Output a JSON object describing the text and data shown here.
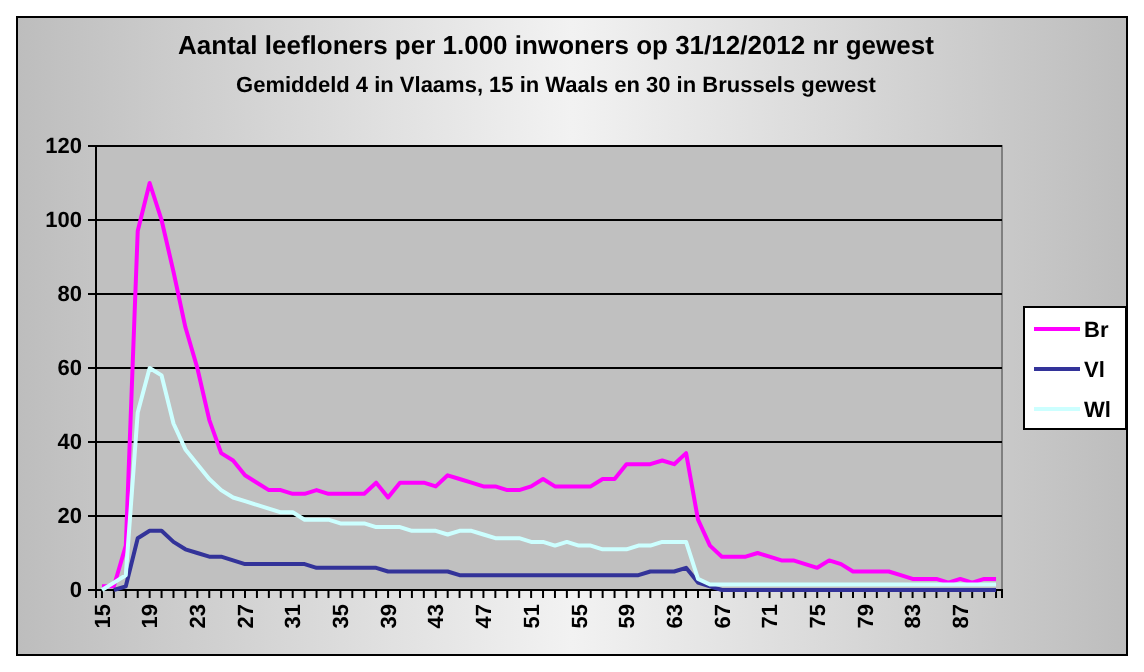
{
  "chart_data": {
    "type": "line",
    "title": "Aantal leefloners per 1.000 inwoners op 31/12/2012 nr gewest",
    "subtitle": "Gemiddeld 4 in Vlaams, 15 in Waals en 30 in Brussels gewest",
    "categories": [
      "15",
      null,
      null,
      null,
      "19",
      null,
      null,
      null,
      "23",
      null,
      null,
      null,
      "27",
      null,
      null,
      null,
      "31",
      null,
      null,
      null,
      "35",
      null,
      null,
      null,
      "39",
      null,
      null,
      null,
      "43",
      null,
      null,
      null,
      "47",
      null,
      null,
      null,
      "51",
      null,
      null,
      null,
      "55",
      null,
      null,
      null,
      "59",
      null,
      null,
      null,
      "63",
      null,
      null,
      null,
      "67",
      null,
      null,
      null,
      "71",
      null,
      null,
      null,
      "75",
      null,
      null,
      null,
      "79",
      null,
      null,
      null,
      "83",
      null,
      null,
      null,
      "87",
      null,
      null,
      null
    ],
    "ylim": [
      0,
      120
    ],
    "yticks": [
      0,
      20,
      40,
      60,
      80,
      100,
      120
    ],
    "grid": "y",
    "legend": "right",
    "marker": "none",
    "line_style": "solid",
    "series": [
      {
        "name": "Br",
        "color": "#ff00ff",
        "values": [
          1,
          1,
          12,
          97,
          110,
          100,
          86,
          71,
          60,
          46,
          37,
          35,
          31,
          29,
          27,
          27,
          26,
          26,
          27,
          26,
          26,
          26,
          26,
          29,
          25,
          29,
          29,
          29,
          28,
          31,
          30,
          29,
          28,
          28,
          27,
          27,
          28,
          30,
          28,
          28,
          28,
          28,
          30,
          30,
          34,
          34,
          34,
          35,
          34,
          37,
          19,
          12,
          9,
          9,
          9,
          10,
          9,
          8,
          8,
          7,
          6,
          8,
          7,
          5,
          5,
          5,
          5,
          4,
          3,
          3,
          3,
          2,
          3,
          2,
          3,
          3
        ]
      },
      {
        "name": "Vl",
        "color": "#333399",
        "values": [
          null,
          0,
          1,
          14,
          16,
          16,
          13,
          11,
          10,
          9,
          9,
          8,
          7,
          7,
          7,
          7,
          7,
          7,
          6,
          6,
          6,
          6,
          6,
          6,
          5,
          5,
          5,
          5,
          5,
          5,
          4,
          4,
          4,
          4,
          4,
          4,
          4,
          4,
          4,
          4,
          4,
          4,
          4,
          4,
          4,
          4,
          5,
          5,
          5,
          6,
          2,
          1,
          0,
          0,
          0,
          0,
          0,
          0,
          0,
          0,
          0,
          0,
          0,
          0,
          0,
          0,
          0,
          0,
          0,
          0,
          0,
          0,
          0,
          0,
          0,
          0
        ]
      },
      {
        "name": "Wl",
        "color": "#ccffff",
        "values": [
          0,
          2,
          4,
          48,
          60,
          58,
          45,
          38,
          34,
          30,
          27,
          25,
          24,
          23,
          22,
          21,
          21,
          19,
          19,
          19,
          18,
          18,
          18,
          17,
          17,
          17,
          16,
          16,
          16,
          15,
          16,
          16,
          15,
          14,
          14,
          14,
          13,
          13,
          12,
          13,
          12,
          12,
          11,
          11,
          11,
          12,
          12,
          13,
          13,
          13,
          3,
          1.5,
          1.5,
          1.5,
          1.5,
          1.5,
          1.5,
          1.5,
          1.5,
          1.5,
          1.5,
          1.5,
          1.5,
          1.5,
          1.5,
          1.5,
          1.5,
          1.5,
          1.5,
          1.5,
          1.5,
          1.5,
          1.5,
          1.5,
          1.5,
          1.5
        ]
      }
    ]
  }
}
